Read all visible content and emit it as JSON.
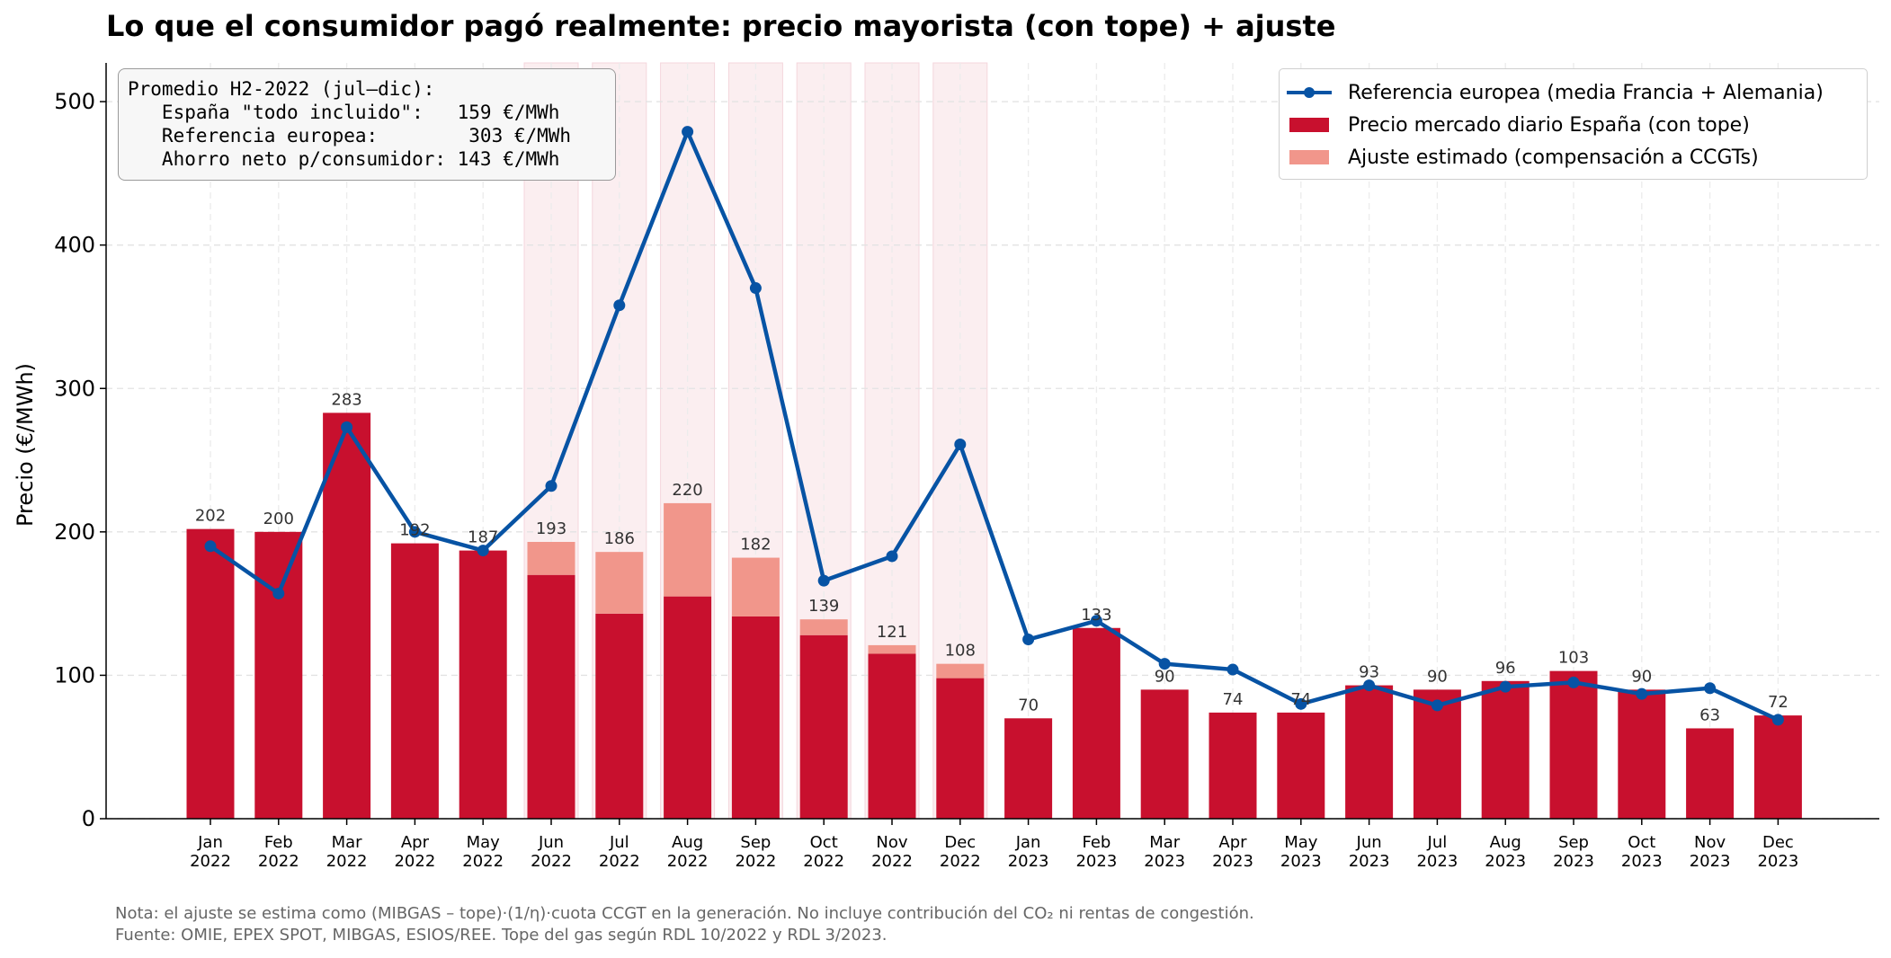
{
  "title": "Lo que el consumidor pagó realmente: precio mayorista (con tope) + ajuste",
  "ylabel": "Precio  (€/MWh)",
  "notes": [
    "Nota: el ajuste se estima como (MIBGAS – tope)·(1/η)·cuota CCGT en la generación. No incluye contribución del CO₂ ni rentas de congestión.",
    "Fuente: OMIE, EPEX SPOT, MIBGAS, ESIOS/REE. Tope del gas según RDL 10/2022 y RDL 3/2023."
  ],
  "infobox": {
    "lines": [
      "Promedio H2-2022 (jul–dic):",
      "   España \"todo incluido\":   159 €/MWh",
      "   Referencia europea:        303 €/MWh",
      "   Ahorro neto p/consumidor: 143 €/MWh"
    ]
  },
  "legend": {
    "items": [
      {
        "label": "Referencia europea (media Francia + Alemania)",
        "kind": "line",
        "color": "#0753a4"
      },
      {
        "label": "Precio mercado diario España (con tope)",
        "kind": "bar",
        "color": "#c8102e"
      },
      {
        "label": "Ajuste estimado (compensación a CCGTs)",
        "kind": "bar",
        "color": "#f1968b"
      }
    ],
    "placement": "top-right"
  },
  "chart_data": {
    "type": "bar",
    "categories": [
      "Jan\n2022",
      "Feb\n2022",
      "Mar\n2022",
      "Apr\n2022",
      "May\n2022",
      "Jun\n2022",
      "Jul\n2022",
      "Aug\n2022",
      "Sep\n2022",
      "Oct\n2022",
      "Nov\n2022",
      "Dec\n2022",
      "Jan\n2023",
      "Feb\n2023",
      "Mar\n2023",
      "Apr\n2023",
      "May\n2023",
      "Jun\n2023",
      "Jul\n2023",
      "Aug\n2023",
      "Sep\n2023",
      "Oct\n2023",
      "Nov\n2023",
      "Dec\n2023"
    ],
    "series": [
      {
        "name": "Precio mercado diario España (con tope)",
        "kind": "bar",
        "stack": true,
        "color": "#c8102e",
        "values": [
          202,
          200,
          283,
          192,
          187,
          170,
          143,
          155,
          141,
          128,
          115,
          98,
          70,
          133,
          90,
          74,
          74,
          93,
          90,
          96,
          103,
          90,
          63,
          72
        ]
      },
      {
        "name": "Ajuste estimado (compensación a CCGTs)",
        "kind": "bar",
        "stack": true,
        "color": "#f1968b",
        "values": [
          0,
          0,
          0,
          0,
          0,
          23,
          43,
          65,
          41,
          11,
          6,
          10,
          0,
          0,
          0,
          0,
          0,
          0,
          0,
          0,
          0,
          0,
          0,
          0
        ]
      },
      {
        "name": "Referencia europea (media Francia + Alemania)",
        "kind": "line",
        "color": "#0753a4",
        "values": [
          190,
          157,
          273,
          200,
          187,
          232,
          358,
          479,
          370,
          166,
          183,
          261,
          125,
          138,
          108,
          104,
          80,
          93,
          79,
          92,
          95,
          87,
          91,
          69
        ]
      }
    ],
    "totals_labels": [
      202,
      200,
      283,
      192,
      187,
      193,
      186,
      220,
      182,
      139,
      121,
      108,
      70,
      133,
      90,
      74,
      74,
      93,
      90,
      96,
      103,
      90,
      63,
      72
    ],
    "highlight_indices": [
      5,
      6,
      7,
      8,
      9,
      10,
      11
    ],
    "highlight_color": "#fbeef0",
    "ylim": [
      0,
      527
    ],
    "yticks": [
      0,
      100,
      200,
      300,
      400,
      500
    ],
    "grid": true
  }
}
